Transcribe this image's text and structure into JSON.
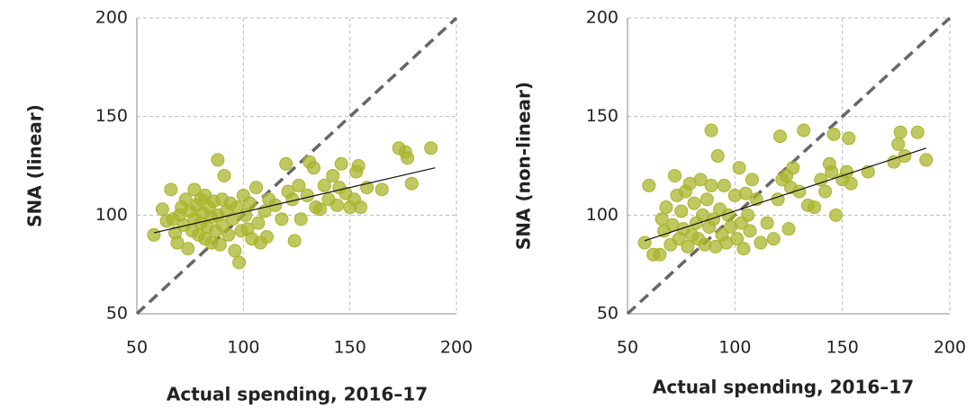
{
  "chart_data": [
    {
      "type": "scatter",
      "xlabel": "Actual spending, 2016–17",
      "ylabel": "SNA (linear)",
      "xlim": [
        50,
        200
      ],
      "ylim": [
        50,
        200
      ],
      "xticks": [
        50,
        100,
        150,
        200
      ],
      "yticks": [
        50,
        100,
        150,
        200
      ],
      "grid": true,
      "color": "#a9b52c",
      "x": [
        58,
        62,
        64,
        66,
        67,
        68,
        69,
        70,
        71,
        72,
        73,
        74,
        75,
        76,
        77,
        77,
        78,
        79,
        80,
        80,
        81,
        82,
        82,
        83,
        84,
        85,
        85,
        86,
        87,
        88,
        88,
        89,
        90,
        90,
        91,
        92,
        93,
        94,
        95,
        96,
        97,
        98,
        99,
        100,
        101,
        102,
        103,
        104,
        106,
        107,
        108,
        110,
        111,
        112,
        115,
        118,
        120,
        121,
        123,
        124,
        126,
        127,
        130,
        131,
        133,
        134,
        136,
        138,
        140,
        142,
        144,
        145,
        146,
        148,
        150,
        152,
        153,
        154,
        155,
        158,
        165,
        173,
        176,
        177,
        179,
        188
      ],
      "values": [
        90,
        103,
        97,
        113,
        98,
        91,
        86,
        100,
        104,
        95,
        108,
        83,
        102,
        92,
        98,
        113,
        105,
        90,
        96,
        108,
        101,
        88,
        110,
        94,
        104,
        99,
        86,
        107,
        92,
        128,
        100,
        85,
        108,
        95,
        120,
        102,
        90,
        106,
        98,
        82,
        104,
        76,
        92,
        110,
        100,
        93,
        106,
        88,
        114,
        96,
        86,
        102,
        89,
        108,
        105,
        98,
        126,
        112,
        108,
        87,
        115,
        98,
        110,
        127,
        124,
        104,
        103,
        115,
        108,
        120,
        105,
        114,
        126,
        111,
        104,
        108,
        122,
        125,
        104,
        114,
        113,
        134,
        132,
        129,
        116,
        134
      ],
      "trendline": {
        "x": [
          58,
          190
        ],
        "y": [
          91,
          124
        ]
      },
      "reference_line": {
        "x": [
          50,
          200
        ],
        "y": [
          50,
          200
        ]
      }
    },
    {
      "type": "scatter",
      "xlabel": "Actual spending, 2016–17",
      "ylabel": "SNA (non-linear)",
      "xlim": [
        50,
        200
      ],
      "ylim": [
        50,
        200
      ],
      "xticks": [
        50,
        100,
        150,
        200
      ],
      "yticks": [
        50,
        100,
        150,
        200
      ],
      "grid": true,
      "color": "#a9b52c",
      "x": [
        58,
        60,
        62,
        65,
        66,
        67,
        68,
        70,
        71,
        72,
        73,
        74,
        75,
        76,
        77,
        78,
        79,
        80,
        81,
        82,
        83,
        84,
        85,
        86,
        87,
        88,
        89,
        89,
        90,
        91,
        92,
        93,
        94,
        95,
        96,
        97,
        98,
        100,
        101,
        102,
        103,
        104,
        105,
        106,
        107,
        108,
        110,
        112,
        115,
        118,
        120,
        121,
        122,
        124,
        125,
        126,
        127,
        130,
        132,
        134,
        137,
        140,
        142,
        144,
        145,
        146,
        147,
        150,
        152,
        153,
        154,
        162,
        174,
        176,
        177,
        179,
        185,
        189
      ],
      "values": [
        86,
        115,
        80,
        80,
        98,
        92,
        104,
        85,
        95,
        120,
        110,
        88,
        102,
        93,
        112,
        84,
        116,
        90,
        106,
        96,
        88,
        118,
        100,
        85,
        108,
        94,
        143,
        115,
        98,
        84,
        130,
        103,
        90,
        115,
        86,
        100,
        94,
        110,
        88,
        124,
        96,
        83,
        111,
        100,
        92,
        118,
        108,
        86,
        96,
        88,
        108,
        140,
        118,
        120,
        93,
        114,
        124,
        112,
        143,
        105,
        104,
        118,
        112,
        126,
        122,
        141,
        100,
        118,
        122,
        139,
        116,
        122,
        127,
        136,
        142,
        130,
        142,
        128
      ],
      "trendline": {
        "x": [
          58,
          189
        ],
        "y": [
          87,
          134
        ]
      },
      "reference_line": {
        "x": [
          50,
          200
        ],
        "y": [
          50,
          200
        ]
      }
    }
  ]
}
